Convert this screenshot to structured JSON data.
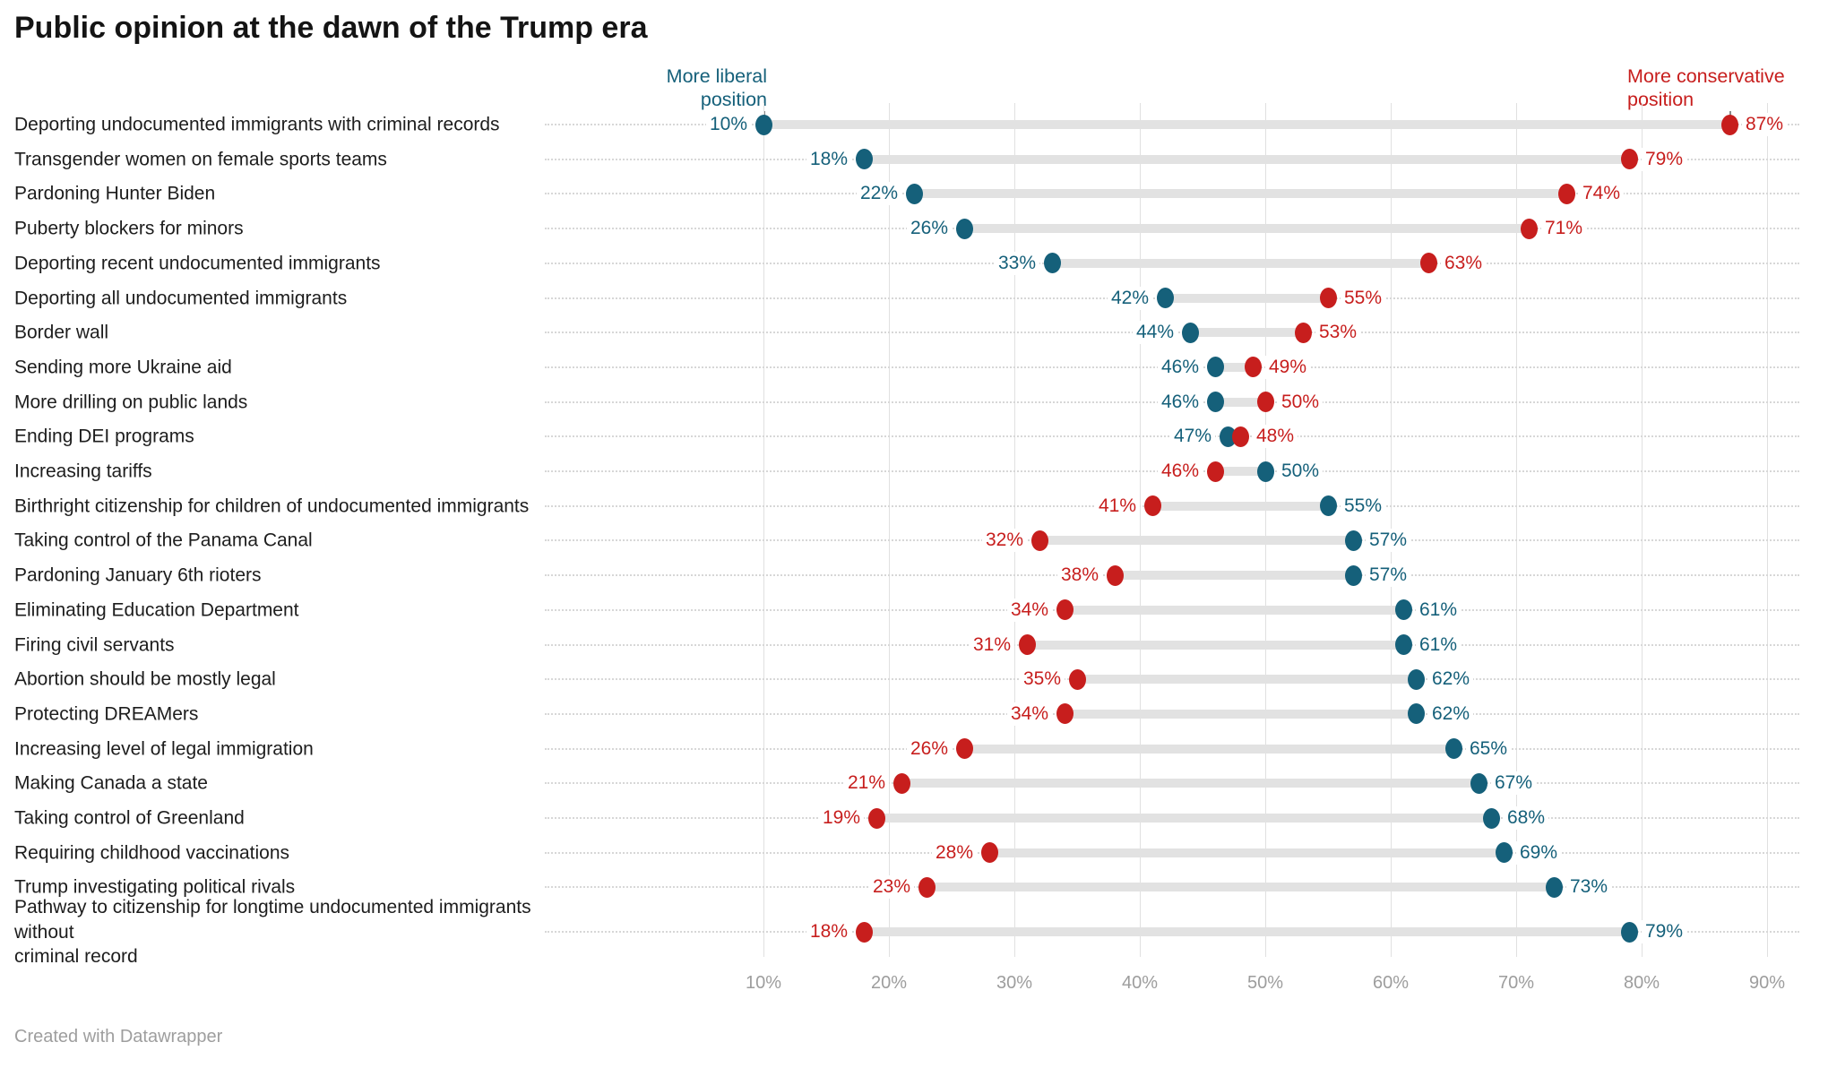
{
  "title": "Public opinion at the dawn of the Trump era",
  "attribution": "Created with Datawrapper",
  "legend": {
    "liberal_line1": "More liberal",
    "liberal_line2": "position",
    "conservative_line1": "More conservative",
    "conservative_line2": "position"
  },
  "colors": {
    "liberal": "#15607a",
    "conservative": "#c71e1d",
    "bar": "#e2e2e2",
    "gridline": "#e0e0e0",
    "leader_dotted": "#d7d7d7",
    "axis_text": "#9d9d9d",
    "row_label_text": "#1d1d1d",
    "title_text": "#141414",
    "footer_text": "#9e9e9e"
  },
  "chart_data": {
    "type": "dumbbell",
    "title": "Public opinion at the dawn of the Trump era",
    "unit": "%",
    "xlim": [
      10,
      90
    ],
    "x_tick_values": [
      10,
      20,
      30,
      40,
      50,
      60,
      70,
      80,
      90
    ],
    "x_tick_labels": [
      "10%",
      "20%",
      "30%",
      "40%",
      "50%",
      "60%",
      "70%",
      "80%",
      "90%"
    ],
    "series_labels": {
      "liberal": "More liberal position",
      "conservative": "More conservative position"
    },
    "rows": [
      {
        "label": "Deporting undocumented immigrants with criminal records",
        "liberal": 10,
        "conservative": 87
      },
      {
        "label": "Transgender women on female sports teams",
        "liberal": 18,
        "conservative": 79
      },
      {
        "label": "Pardoning Hunter Biden",
        "liberal": 22,
        "conservative": 74
      },
      {
        "label": "Puberty blockers for minors",
        "liberal": 26,
        "conservative": 71
      },
      {
        "label": "Deporting recent undocumented immigrants",
        "liberal": 33,
        "conservative": 63
      },
      {
        "label": "Deporting all undocumented immigrants",
        "liberal": 42,
        "conservative": 55
      },
      {
        "label": "Border wall",
        "liberal": 44,
        "conservative": 53
      },
      {
        "label": "Sending more Ukraine aid",
        "liberal": 46,
        "conservative": 49
      },
      {
        "label": "More drilling on public lands",
        "liberal": 46,
        "conservative": 50
      },
      {
        "label": "Ending DEI programs",
        "liberal": 47,
        "conservative": 48
      },
      {
        "label": "Increasing tariffs",
        "liberal": 50,
        "conservative": 46
      },
      {
        "label": "Birthright citizenship for children of undocumented immigrants",
        "liberal": 55,
        "conservative": 41
      },
      {
        "label": "Taking control of the Panama Canal",
        "liberal": 57,
        "conservative": 32
      },
      {
        "label": "Pardoning January 6th rioters",
        "liberal": 57,
        "conservative": 38
      },
      {
        "label": "Eliminating Education Department",
        "liberal": 61,
        "conservative": 34
      },
      {
        "label": "Firing civil servants",
        "liberal": 61,
        "conservative": 31
      },
      {
        "label": "Abortion should be mostly legal",
        "liberal": 62,
        "conservative": 35
      },
      {
        "label": "Protecting DREAMers",
        "liberal": 62,
        "conservative": 34
      },
      {
        "label": "Increasing level of legal immigration",
        "liberal": 65,
        "conservative": 26
      },
      {
        "label": "Making Canada a state",
        "liberal": 67,
        "conservative": 21
      },
      {
        "label": "Taking control of Greenland",
        "liberal": 68,
        "conservative": 19
      },
      {
        "label": "Requiring childhood vaccinations",
        "liberal": 69,
        "conservative": 28
      },
      {
        "label": "Trump investigating political rivals",
        "liberal": 73,
        "conservative": 23
      },
      {
        "label": "Pathway to citizenship for longtime undocumented immigrants without\ncriminal record",
        "liberal": 79,
        "conservative": 18
      }
    ]
  }
}
